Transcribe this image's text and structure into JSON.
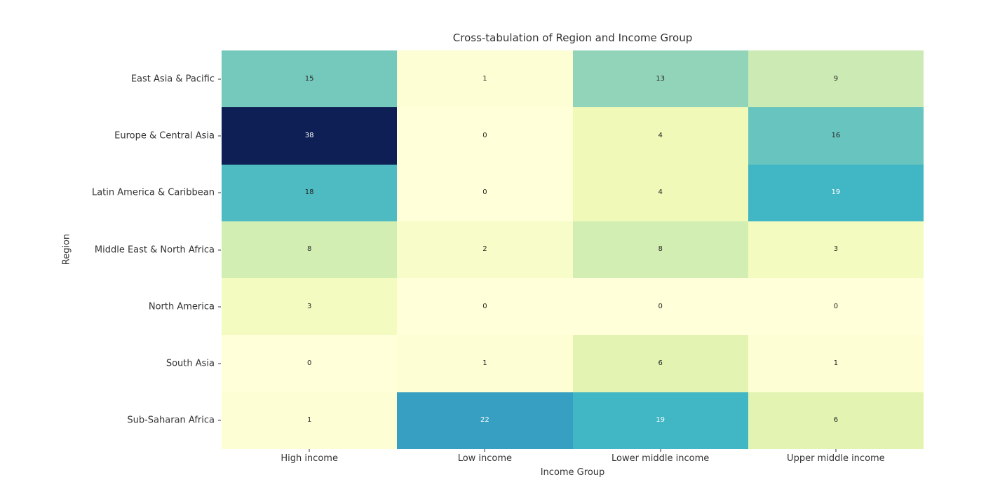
{
  "chart_data": {
    "type": "heatmap",
    "title": "Cross-tabulation of Region and Income Group",
    "xlabel": "Income Group",
    "ylabel": "Region",
    "columns": [
      "High income",
      "Low income",
      "Lower middle income",
      "Upper middle income"
    ],
    "rows": [
      "East Asia & Pacific",
      "Europe & Central Asia",
      "Latin America & Caribbean",
      "Middle East & North Africa",
      "North America",
      "South Asia",
      "Sub-Saharan Africa"
    ],
    "values": [
      [
        15,
        1,
        13,
        9
      ],
      [
        38,
        0,
        4,
        16
      ],
      [
        18,
        0,
        4,
        19
      ],
      [
        8,
        2,
        8,
        3
      ],
      [
        3,
        0,
        0,
        0
      ],
      [
        0,
        1,
        6,
        1
      ],
      [
        1,
        22,
        19,
        6
      ]
    ],
    "vmin": 0,
    "vmax": 38,
    "colormap": "YlGnBu",
    "grid": false,
    "legend": "none",
    "cell_colors": [
      [
        "#75c9bc",
        "#fdfed4",
        "#92d4b9",
        "#cbeab4"
      ],
      [
        "#0d1f54",
        "#ffffd9",
        "#f0f9b8",
        "#68c4be"
      ],
      [
        "#4ebbc2",
        "#ffffd9",
        "#f0f9b8",
        "#41b6c4"
      ],
      [
        "#d3eeb3",
        "#f7fcc8",
        "#d3eeb3",
        "#f3fbc0"
      ],
      [
        "#f3fbc0",
        "#ffffd9",
        "#ffffd9",
        "#ffffd9"
      ],
      [
        "#ffffd9",
        "#fdfed4",
        "#e3f4b2",
        "#fdfed4"
      ],
      [
        "#fdfed4",
        "#379fc1",
        "#41b6c4",
        "#e3f4b2"
      ]
    ],
    "light_text_cells": [
      [
        1,
        0
      ],
      [
        2,
        3
      ],
      [
        6,
        1
      ],
      [
        6,
        2
      ]
    ],
    "annot_color_dark": "#262626",
    "annot_color_light": "#ffffff",
    "axis_text_color": "#333333"
  }
}
